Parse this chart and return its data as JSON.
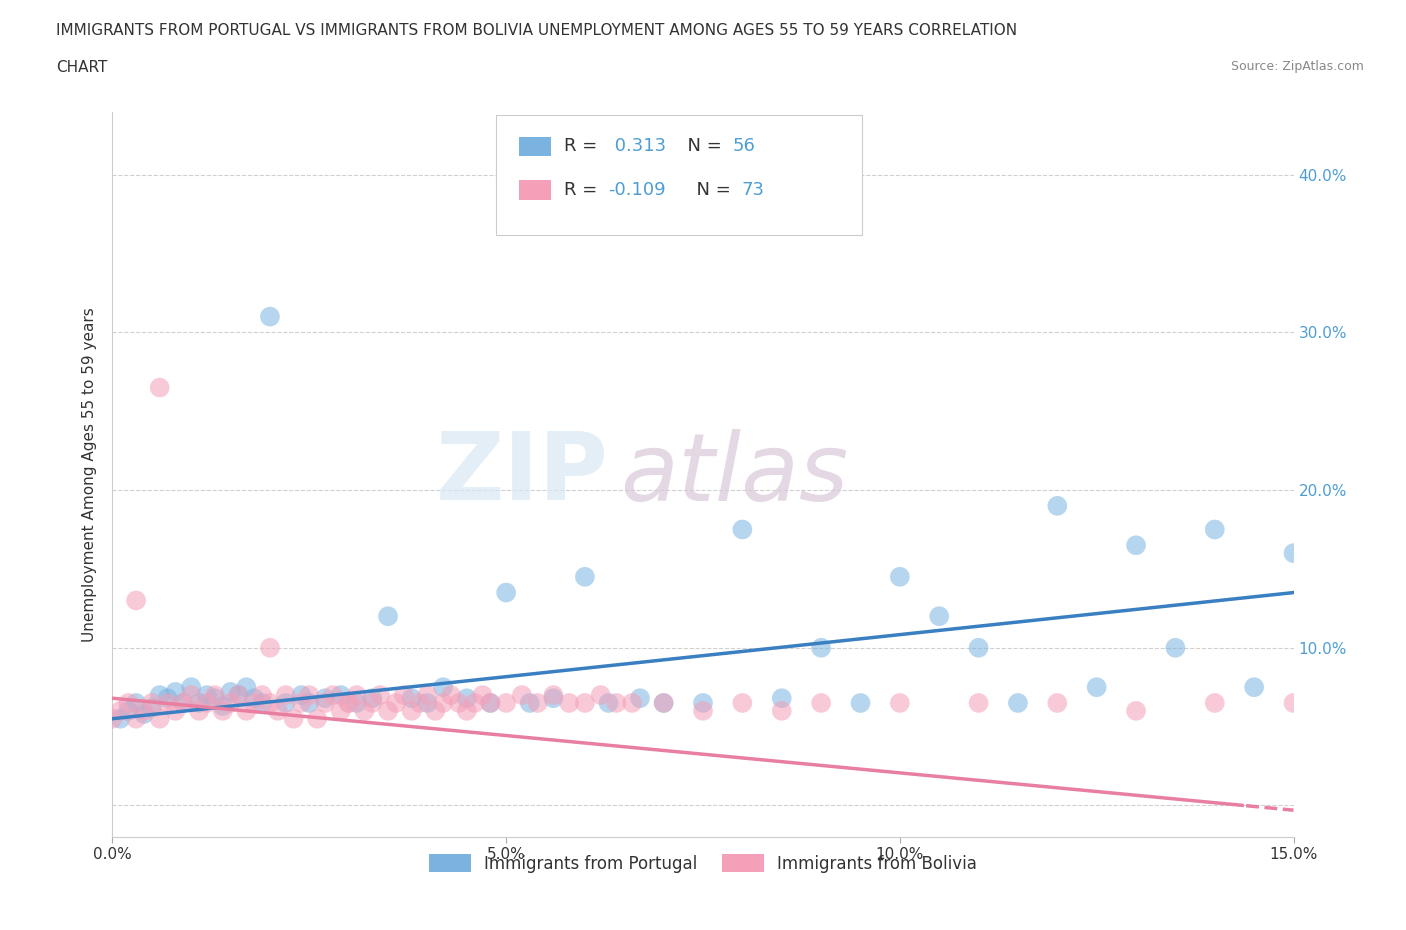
{
  "title_line1": "IMMIGRANTS FROM PORTUGAL VS IMMIGRANTS FROM BOLIVIA UNEMPLOYMENT AMONG AGES 55 TO 59 YEARS CORRELATION",
  "title_line2": "CHART",
  "source_text": "Source: ZipAtlas.com",
  "ylabel": "Unemployment Among Ages 55 to 59 years",
  "xlim": [
    0.0,
    0.15
  ],
  "ylim": [
    -0.02,
    0.44
  ],
  "xticks": [
    0.0,
    0.05,
    0.1,
    0.15
  ],
  "xtick_labels": [
    "0.0%",
    "5.0%",
    "10.0%",
    "15.0%"
  ],
  "yticks": [
    0.0,
    0.1,
    0.2,
    0.3,
    0.4
  ],
  "ytick_labels": [
    "",
    "10.0%",
    "20.0%",
    "30.0%",
    "40.0%"
  ],
  "portugal_color": "#7ab3e0",
  "bolivia_color": "#f4a0b8",
  "portugal_line_color": "#3a7fc1",
  "bolivia_line_color": "#e87fa0",
  "portugal_R": 0.313,
  "portugal_N": 56,
  "bolivia_R": -0.109,
  "bolivia_N": 73,
  "legend_label_portugal": "Immigrants from Portugal",
  "legend_label_bolivia": "Immigrants from Bolivia",
  "watermark_zip": "ZIP",
  "watermark_atlas": "atlas",
  "grid_color": "#d0d0d0",
  "background_color": "#ffffff",
  "blue_text": "#4e9ed4",
  "dark_text": "#333333",
  "portugal_scatter_x": [
    0.001,
    0.002,
    0.003,
    0.004,
    0.005,
    0.006,
    0.007,
    0.008,
    0.009,
    0.01,
    0.011,
    0.012,
    0.013,
    0.014,
    0.015,
    0.016,
    0.017,
    0.018,
    0.019,
    0.02,
    0.022,
    0.024,
    0.025,
    0.027,
    0.029,
    0.031,
    0.033,
    0.035,
    0.038,
    0.04,
    0.042,
    0.045,
    0.048,
    0.05,
    0.053,
    0.056,
    0.06,
    0.063,
    0.067,
    0.07,
    0.075,
    0.08,
    0.085,
    0.09,
    0.095,
    0.1,
    0.105,
    0.11,
    0.115,
    0.12,
    0.125,
    0.13,
    0.135,
    0.14,
    0.145,
    0.15
  ],
  "portugal_scatter_y": [
    0.055,
    0.06,
    0.065,
    0.058,
    0.062,
    0.07,
    0.068,
    0.072,
    0.065,
    0.075,
    0.065,
    0.07,
    0.068,
    0.063,
    0.072,
    0.07,
    0.075,
    0.068,
    0.065,
    0.31,
    0.065,
    0.07,
    0.065,
    0.068,
    0.07,
    0.065,
    0.068,
    0.12,
    0.068,
    0.065,
    0.075,
    0.068,
    0.065,
    0.135,
    0.065,
    0.068,
    0.145,
    0.065,
    0.068,
    0.065,
    0.065,
    0.175,
    0.068,
    0.1,
    0.065,
    0.145,
    0.12,
    0.1,
    0.065,
    0.19,
    0.075,
    0.165,
    0.1,
    0.175,
    0.075,
    0.16
  ],
  "bolivia_scatter_x": [
    0.0,
    0.001,
    0.002,
    0.003,
    0.004,
    0.005,
    0.006,
    0.007,
    0.008,
    0.009,
    0.01,
    0.011,
    0.012,
    0.013,
    0.014,
    0.015,
    0.016,
    0.017,
    0.018,
    0.019,
    0.02,
    0.021,
    0.022,
    0.023,
    0.024,
    0.025,
    0.026,
    0.027,
    0.028,
    0.029,
    0.03,
    0.031,
    0.032,
    0.033,
    0.034,
    0.035,
    0.036,
    0.037,
    0.038,
    0.039,
    0.04,
    0.041,
    0.042,
    0.043,
    0.044,
    0.045,
    0.046,
    0.047,
    0.048,
    0.05,
    0.052,
    0.054,
    0.056,
    0.058,
    0.06,
    0.062,
    0.064,
    0.066,
    0.07,
    0.075,
    0.08,
    0.085,
    0.09,
    0.1,
    0.11,
    0.12,
    0.13,
    0.14,
    0.15,
    0.003,
    0.006,
    0.02,
    0.03
  ],
  "bolivia_scatter_y": [
    0.055,
    0.06,
    0.065,
    0.055,
    0.06,
    0.065,
    0.055,
    0.065,
    0.06,
    0.065,
    0.07,
    0.06,
    0.065,
    0.07,
    0.06,
    0.065,
    0.07,
    0.06,
    0.065,
    0.07,
    0.065,
    0.06,
    0.07,
    0.055,
    0.065,
    0.07,
    0.055,
    0.065,
    0.07,
    0.06,
    0.065,
    0.07,
    0.06,
    0.065,
    0.07,
    0.06,
    0.065,
    0.07,
    0.06,
    0.065,
    0.07,
    0.06,
    0.065,
    0.07,
    0.065,
    0.06,
    0.065,
    0.07,
    0.065,
    0.065,
    0.07,
    0.065,
    0.07,
    0.065,
    0.065,
    0.07,
    0.065,
    0.065,
    0.065,
    0.06,
    0.065,
    0.06,
    0.065,
    0.065,
    0.065,
    0.065,
    0.06,
    0.065,
    0.065,
    0.13,
    0.265,
    0.1,
    0.065
  ]
}
